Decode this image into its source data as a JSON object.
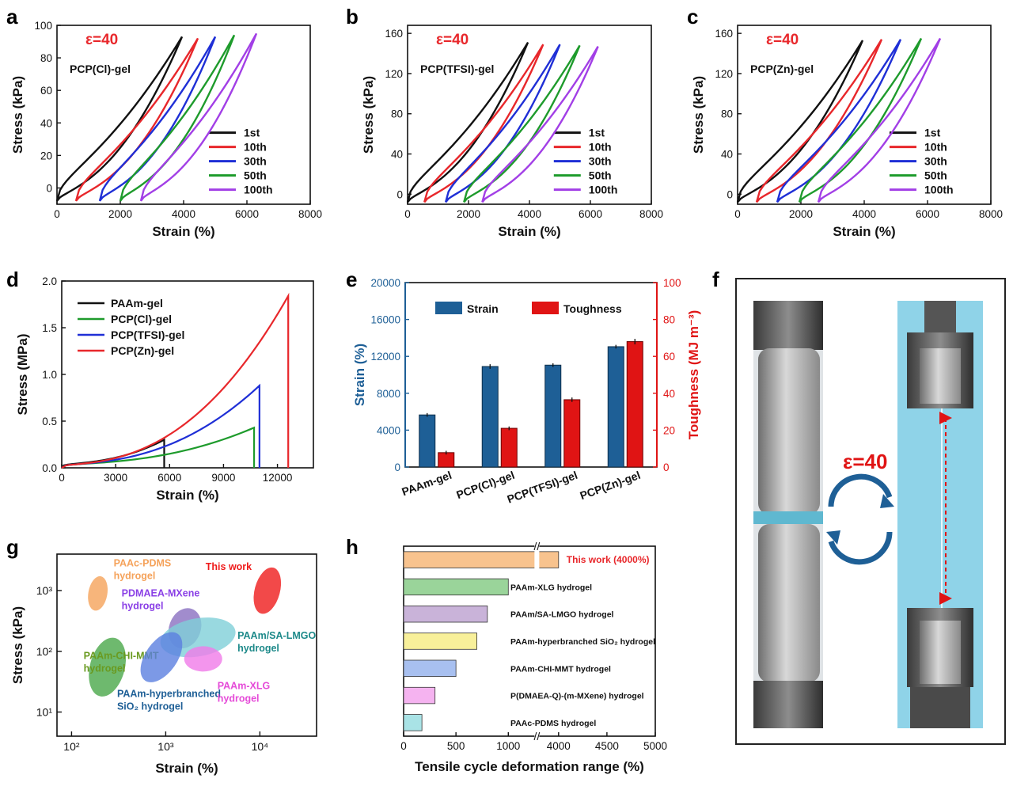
{
  "colors": {
    "black": "#111111",
    "red": "#e8272b",
    "blue": "#1f2fd6",
    "green": "#1e9b2c",
    "purple": "#a23fe6",
    "bar_blue": "#1e5f96",
    "bar_red": "#e01414",
    "axis_red": "#e01414",
    "axis_blue": "#1e5f96",
    "panel_f_bg": "#8fd3e8",
    "orange": "#f5a25a"
  },
  "chart_data": [
    {
      "panel": "a",
      "type": "line",
      "annotation": "ε=40",
      "label": "PCP(Cl)-gel",
      "xlabel": "Strain (%)",
      "ylabel": "Stress (kPa)",
      "xlim": [
        0,
        8000
      ],
      "ylim": [
        -10,
        100
      ],
      "xticks": [
        0,
        2000,
        4000,
        6000,
        8000
      ],
      "yticks": [
        0,
        20,
        40,
        60,
        80,
        100
      ],
      "legend_position": "bottom-right",
      "series": [
        {
          "name": "1st",
          "x_start": 0,
          "x_end": 3950,
          "y_max": 93
        },
        {
          "name": "10th",
          "x_start": 600,
          "x_end": 4450,
          "y_max": 92
        },
        {
          "name": "30th",
          "x_start": 1350,
          "x_end": 5000,
          "y_max": 93
        },
        {
          "name": "50th",
          "x_start": 2000,
          "x_end": 5600,
          "y_max": 94
        },
        {
          "name": "100th",
          "x_start": 2650,
          "x_end": 6300,
          "y_max": 95
        }
      ]
    },
    {
      "panel": "b",
      "type": "line",
      "annotation": "ε=40",
      "label": "PCP(TFSI)-gel",
      "xlabel": "Strain (%)",
      "ylabel": "Stress (kPa)",
      "xlim": [
        0,
        8000
      ],
      "ylim": [
        -10,
        168
      ],
      "xticks": [
        0,
        2000,
        4000,
        6000,
        8000
      ],
      "yticks": [
        0,
        40,
        80,
        120,
        160
      ],
      "legend_position": "bottom-right",
      "series": [
        {
          "name": "1st",
          "x_start": 0,
          "x_end": 3950,
          "y_max": 151
        },
        {
          "name": "10th",
          "x_start": 550,
          "x_end": 4450,
          "y_max": 149
        },
        {
          "name": "30th",
          "x_start": 1250,
          "x_end": 5000,
          "y_max": 149
        },
        {
          "name": "50th",
          "x_start": 1850,
          "x_end": 5650,
          "y_max": 148
        },
        {
          "name": "100th",
          "x_start": 2450,
          "x_end": 6250,
          "y_max": 147
        }
      ]
    },
    {
      "panel": "c",
      "type": "line",
      "annotation": "ε=40",
      "label": "PCP(Zn)-gel",
      "xlabel": "Strain (%)",
      "ylabel": "Stress (kPa)",
      "xlim": [
        0,
        8000
      ],
      "ylim": [
        -10,
        168
      ],
      "xticks": [
        0,
        2000,
        4000,
        6000,
        8000
      ],
      "yticks": [
        0,
        40,
        80,
        120,
        160
      ],
      "legend_position": "bottom-right",
      "series": [
        {
          "name": "1st",
          "x_start": 0,
          "x_end": 3950,
          "y_max": 153
        },
        {
          "name": "10th",
          "x_start": 600,
          "x_end": 4550,
          "y_max": 154
        },
        {
          "name": "30th",
          "x_start": 1250,
          "x_end": 5150,
          "y_max": 154
        },
        {
          "name": "50th",
          "x_start": 1950,
          "x_end": 5800,
          "y_max": 155
        },
        {
          "name": "100th",
          "x_start": 2550,
          "x_end": 6400,
          "y_max": 155
        }
      ]
    },
    {
      "panel": "d",
      "type": "line",
      "xlabel": "Strain (%)",
      "ylabel": "Stress (MPa)",
      "xlim": [
        0,
        14000
      ],
      "ylim": [
        0,
        2.0
      ],
      "xticks": [
        0,
        3000,
        6000,
        9000,
        12000
      ],
      "yticks": [
        0.0,
        0.5,
        1.0,
        1.5,
        2.0
      ],
      "legend_position": "top-left",
      "series": [
        {
          "name": "PAAm-gel",
          "x_break": 5700,
          "y_break": 0.3
        },
        {
          "name": "PCP(Cl)-gel",
          "x_break": 10700,
          "y_break": 0.43
        },
        {
          "name": "PCP(TFSI)-gel",
          "x_break": 11000,
          "y_break": 0.88
        },
        {
          "name": "PCP(Zn)-gel",
          "x_break": 12600,
          "y_break": 1.84
        }
      ]
    },
    {
      "panel": "e",
      "type": "bar",
      "categories": [
        "PAAm-gel",
        "PCP(Cl)-gel",
        "PCP(TFSI)-gel",
        "PCP(Zn)-gel"
      ],
      "ylabel": "Strain (%)",
      "y2label": "Toughness (MJ m⁻³)",
      "ylim": [
        0,
        20000
      ],
      "y2lim": [
        0,
        100
      ],
      "yticks": [
        0,
        4000,
        8000,
        12000,
        16000,
        20000
      ],
      "y2ticks": [
        0,
        20,
        40,
        60,
        80,
        100
      ],
      "series": [
        {
          "name": "Strain",
          "values": [
            5650,
            10900,
            11050,
            13050
          ],
          "errors": [
            200,
            250,
            200,
            200
          ]
        },
        {
          "name": "Toughness",
          "values": [
            7.8,
            21,
            36.5,
            68
          ],
          "errors": [
            1,
            1,
            1.2,
            1.5
          ]
        }
      ]
    },
    {
      "panel": "g",
      "type": "scatter",
      "xlabel": "Strain (%)",
      "ylabel": "Stress (kPa)",
      "xscale": "log",
      "yscale": "log",
      "xlim": [
        70,
        40000
      ],
      "ylim": [
        4,
        4000
      ],
      "xticks": [
        100,
        1000,
        10000
      ],
      "xtick_labels": [
        "10²",
        "10³",
        "10⁴"
      ],
      "yticks": [
        10,
        100,
        1000
      ],
      "ytick_labels": [
        "10¹",
        "10²",
        "10³"
      ],
      "regions": [
        {
          "name": "PAAc-PDMS hydrogel",
          "line1": "PAAc-PDMS",
          "line2": "hydrogel",
          "color": "#f5a25a",
          "x_center": 190,
          "y_center": 900
        },
        {
          "name": "This work",
          "line1": "This work",
          "line2": "",
          "color": "#ef1b1b",
          "x_center": 12000,
          "y_center": 1000
        },
        {
          "name": "PDMAEA-MXene hydrogel",
          "line1": "PDMAEA-MXene",
          "line2": "hydrogel",
          "color": "#8a6fc0",
          "x_center": 1600,
          "y_center": 240
        },
        {
          "name": "PAAm/SA-LMGO hydrogel",
          "line1": "PAAm/SA-LMGO",
          "line2": "hydrogel",
          "color": "#7fd0d8",
          "x_center": 2200,
          "y_center": 170
        },
        {
          "name": "PAAm-CHI-MMT hydrogel",
          "line1": "PAAm-CHI-MMT",
          "line2": "hydrogel",
          "color": "#4aa84a",
          "x_center": 240,
          "y_center": 55
        },
        {
          "name": "PAAm-hyperbranched SiO2 hydrogel",
          "line1": "PAAm-hyperbranched",
          "line2": "SiO₂ hydrogel",
          "color": "#5b7fe0",
          "x_center": 900,
          "y_center": 80
        },
        {
          "name": "PAAm-XLG hydrogel",
          "line1": "PAAm-XLG",
          "line2": "hydrogel",
          "color": "#f07ae8",
          "x_center": 2500,
          "y_center": 75
        }
      ]
    },
    {
      "panel": "h",
      "type": "bar",
      "orientation": "horizontal",
      "xlabel": "Tensile cycle deformation range (%)",
      "xticks": [
        0,
        500,
        1000,
        4000,
        4500,
        5000
      ],
      "axis_break": [
        1250,
        3800
      ],
      "categories": [
        "This work (4000%)",
        "PAAm-XLG hydrogel",
        "PAAm/SA-LMGO hydrogel",
        "PAAm-hyperbranched SiO₂ hydrogel",
        "PAAm-CHI-MMT hydrogel",
        "P(DMAEA-Q)-(m-MXene) hydrogel",
        "PAAc-PDMS hydrogel"
      ],
      "values": [
        4000,
        1000,
        800,
        700,
        500,
        300,
        175
      ],
      "colors": [
        "#f8c38e",
        "#9ad49a",
        "#c9b3d9",
        "#f8f09a",
        "#a8c0f0",
        "#f5b3f0",
        "#a9e3e6"
      ]
    }
  ],
  "panel_labels": {
    "a": "a",
    "b": "b",
    "c": "c",
    "d": "d",
    "e": "e",
    "f": "f",
    "g": "g",
    "h": "h"
  },
  "panel_f": {
    "annotation": "ε=40"
  }
}
